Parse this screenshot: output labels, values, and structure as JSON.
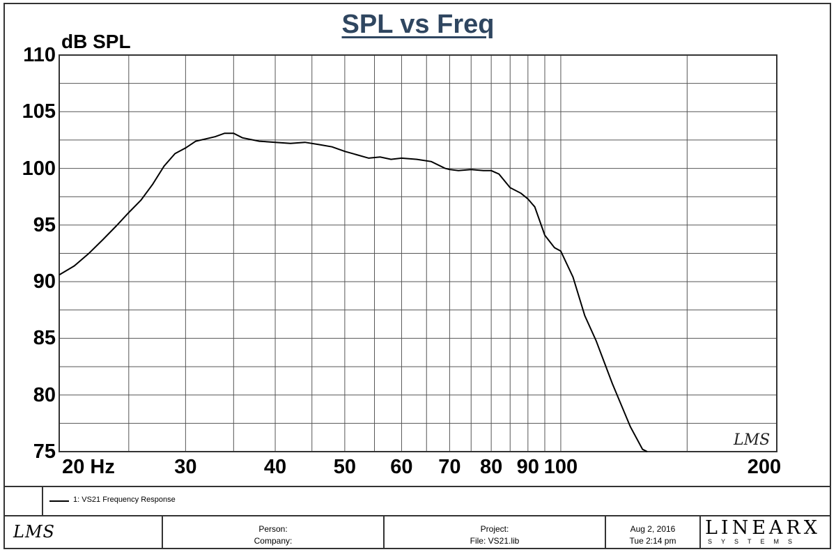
{
  "chart_data": {
    "type": "line",
    "title": "SPL vs Freq",
    "ylabel": "dB SPL",
    "xlabel": "",
    "xscale": "log",
    "xlim": [
      20,
      200
    ],
    "ylim": [
      75,
      110
    ],
    "grid": true,
    "yticks": [
      "110",
      "105",
      "100",
      "95",
      "90",
      "85",
      "80",
      "75"
    ],
    "xticks": [
      {
        "value": 20,
        "label": "20 Hz"
      },
      {
        "value": 30,
        "label": "30"
      },
      {
        "value": 40,
        "label": "40"
      },
      {
        "value": 50,
        "label": "50"
      },
      {
        "value": 60,
        "label": "60"
      },
      {
        "value": 70,
        "label": "70"
      },
      {
        "value": 80,
        "label": "80"
      },
      {
        "value": 90,
        "label": "90"
      },
      {
        "value": 100,
        "label": "100"
      },
      {
        "value": 200,
        "label": "200"
      }
    ],
    "series": [
      {
        "name": "1: VS21 Frequency Response",
        "x": [
          20,
          21,
          22,
          23,
          24,
          25,
          26,
          27,
          28,
          29,
          30,
          31,
          32,
          33,
          34,
          35,
          36,
          38,
          40,
          42,
          44,
          46,
          48,
          50,
          52,
          54,
          56,
          58,
          60,
          63,
          66,
          69,
          70,
          72,
          75,
          78,
          80,
          82,
          85,
          88,
          90,
          92,
          95,
          98,
          100,
          104,
          108,
          112,
          118,
          125,
          130,
          135
        ],
        "values": [
          90.6,
          91.4,
          92.5,
          93.7,
          94.9,
          96.1,
          97.2,
          98.6,
          100.2,
          101.3,
          101.8,
          102.4,
          102.6,
          102.8,
          103.1,
          103.1,
          102.7,
          102.4,
          102.3,
          102.2,
          102.3,
          102.1,
          101.9,
          101.5,
          101.2,
          100.9,
          101.0,
          100.8,
          100.9,
          100.8,
          100.6,
          100.0,
          99.9,
          99.8,
          99.9,
          99.8,
          99.8,
          99.5,
          98.3,
          97.8,
          97.3,
          96.6,
          94.1,
          93.0,
          92.7,
          90.4,
          87.0,
          84.8,
          81.0,
          77.2,
          75.2,
          74.7
        ]
      }
    ]
  },
  "legend": {
    "label": "1: VS21 Frequency Response"
  },
  "watermark": "LMS",
  "footer": {
    "logo": "LMS",
    "person_label": "Person:",
    "company_label": "Company:",
    "project_label": "Project:",
    "file_label": "File: VS21.lib",
    "date": "Aug 2, 2016",
    "time": "Tue 2:14 pm",
    "brand_main": "LINEARX",
    "brand_sub": "SYSTEMS"
  },
  "colors": {
    "title": "#2f4660",
    "grid": "#555555",
    "curve": "#000000"
  }
}
